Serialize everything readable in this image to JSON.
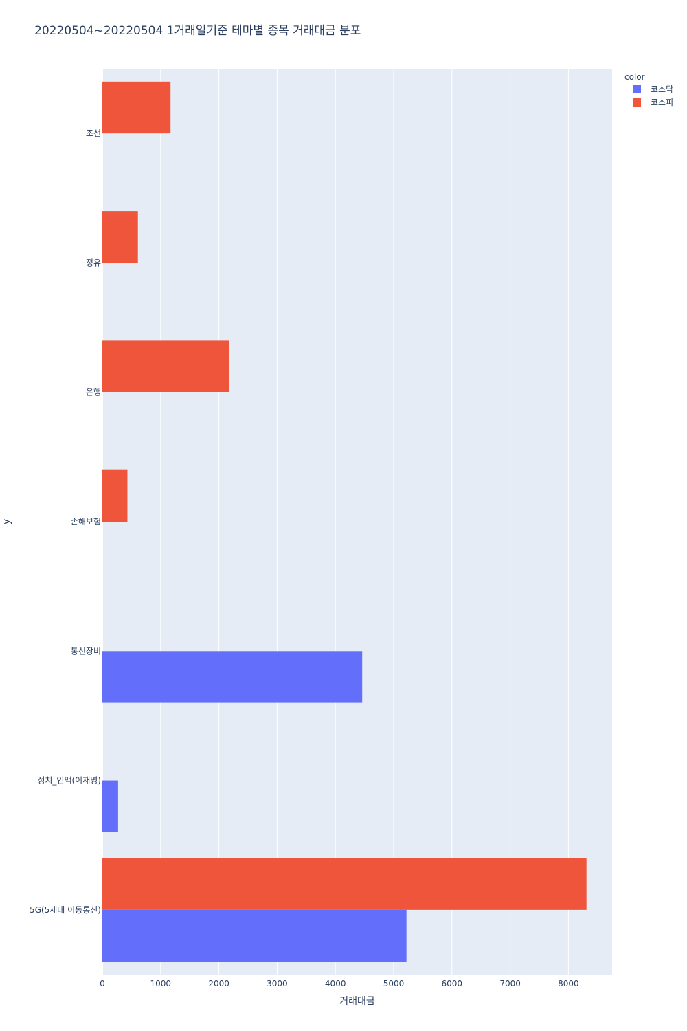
{
  "chart_data": {
    "type": "bar",
    "orientation": "horizontal",
    "barmode": "group",
    "title": "20220504~20220504 1거래일기준 테마별 종목 거래대금 분포",
    "xlabel": "거래대금",
    "ylabel": "y",
    "xlim": [
      0,
      8750
    ],
    "xticks": [
      0,
      1000,
      2000,
      3000,
      4000,
      5000,
      6000,
      7000,
      8000
    ],
    "categories": [
      "5G(5세대 이동통신)",
      "정치_인맥(이재명)",
      "통신장비",
      "손해보험",
      "은행",
      "정유",
      "조선"
    ],
    "legend_title": "color",
    "legend_position": "top-right",
    "grid": true,
    "series": [
      {
        "name": "코스닥",
        "color": "#636efa",
        "values": [
          5220,
          270,
          4460,
          null,
          null,
          null,
          null
        ]
      },
      {
        "name": "코스피",
        "color": "#ef553b",
        "values": [
          8310,
          null,
          null,
          430,
          2170,
          610,
          1170
        ]
      }
    ]
  }
}
